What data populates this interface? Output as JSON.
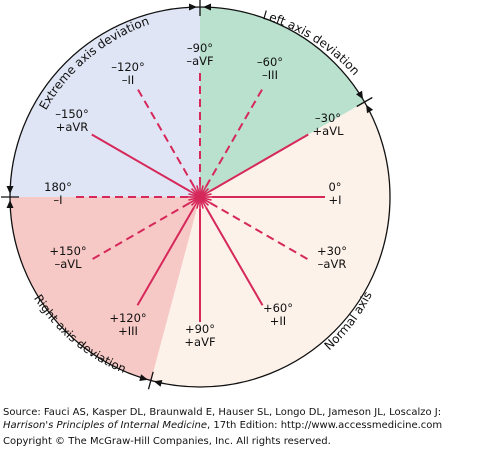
{
  "colors": {
    "normal": "#fdf2ea",
    "left": "#b9e1ce",
    "right": "#f7c9c6",
    "extreme": "#dfe5f4",
    "lead_line": "#d6285a",
    "outline": "#111111"
  },
  "zones": {
    "extreme": "Extreme axis deviation",
    "left": "Left axis deviation",
    "right": "Right axis deviation",
    "normal": "Normal axis"
  },
  "leads": [
    {
      "id": "I",
      "angle": 0,
      "line": "solid",
      "deg": "0°",
      "name": "+I"
    },
    {
      "id": "aVR-pos",
      "angle": 30,
      "line": "dashed",
      "deg": "+30°",
      "name": "–aVR"
    },
    {
      "id": "II",
      "angle": 60,
      "line": "solid",
      "deg": "+60°",
      "name": "+II"
    },
    {
      "id": "aVF",
      "angle": 90,
      "line": "solid",
      "deg": "+90°",
      "name": "+aVF"
    },
    {
      "id": "III",
      "angle": 120,
      "line": "solid",
      "deg": "+120°",
      "name": "+III"
    },
    {
      "id": "aVL-neg",
      "angle": 150,
      "line": "dashed",
      "deg": "+150°",
      "name": "–aVL"
    },
    {
      "id": "I-neg",
      "angle": 180,
      "line": "dashed",
      "deg": "180°",
      "name": "–I"
    },
    {
      "id": "aVR",
      "angle": -150,
      "line": "solid",
      "deg": "–150°",
      "name": "+aVR"
    },
    {
      "id": "II-neg",
      "angle": -120,
      "line": "dashed",
      "deg": "–120°",
      "name": "–II"
    },
    {
      "id": "aVF-neg",
      "angle": -90,
      "line": "dashed",
      "deg": "–90°",
      "name": "–aVF"
    },
    {
      "id": "III-neg",
      "angle": -60,
      "line": "dashed",
      "deg": "–60°",
      "name": "–III"
    },
    {
      "id": "aVL",
      "angle": -30,
      "line": "solid",
      "deg": "–30°",
      "name": "+aVL"
    }
  ],
  "credit": {
    "source_line": "Source: Fauci AS, Kasper DL, Braunwald E, Hauser SL, Longo DL, Jameson JL, Loscalzo J:",
    "book_title": "Harrison's Principles of Internal Medicine",
    "book_rest": ", 17th Edition: http://www.accessmedicine.com",
    "copyright": "Copyright © The McGraw-Hill Companies, Inc. All rights reserved."
  }
}
